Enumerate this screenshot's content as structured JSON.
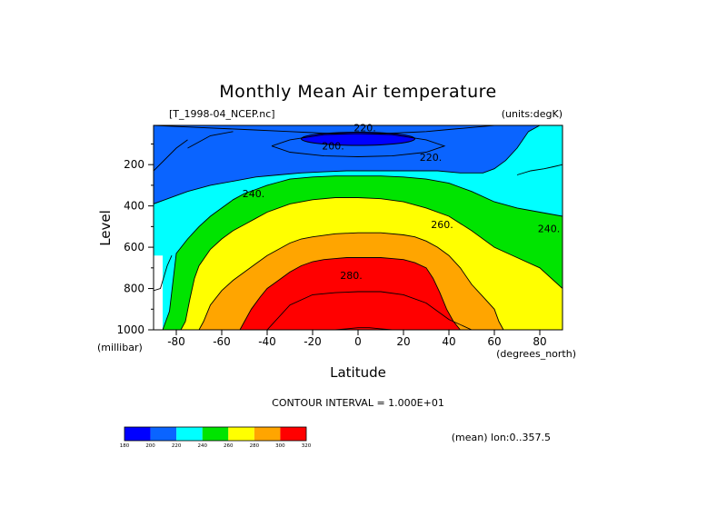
{
  "chart_data": {
    "type": "contour",
    "title": "Monthly Mean Air temperature",
    "file_label": "[T_1998-04_NCEP.nc]",
    "units_label": "(units:degK)",
    "xlabel": "Latitude",
    "ylabel": "Level",
    "y_units": "(millibar)",
    "x_units": "(degrees_north)",
    "xlim": [
      -90,
      90
    ],
    "ylim": [
      1000,
      10
    ],
    "x_ticks": [
      -80,
      -60,
      -40,
      -20,
      0,
      20,
      40,
      60,
      80
    ],
    "y_ticks": [
      200,
      400,
      600,
      800,
      1000
    ],
    "contour_interval_text": "CONTOUR INTERVAL = 1.000E+01",
    "contour_interval": 10,
    "footer_label": "(mean) lon:0..357.5",
    "levels": [
      180,
      200,
      220,
      240,
      260,
      280,
      300,
      320
    ],
    "band_colors": [
      "#0000ff",
      "#0a64ff",
      "#00ffff",
      "#00e400",
      "#ffff00",
      "#ffa500",
      "#ff0000"
    ],
    "contour_labels": [
      {
        "text": "200.",
        "lat": -11,
        "level": 110
      },
      {
        "text": "220.",
        "lat": 3,
        "level": 20
      },
      {
        "text": "220.",
        "lat": 32,
        "level": 165
      },
      {
        "text": "240.",
        "lat": -46,
        "level": 340
      },
      {
        "text": "260.",
        "lat": 37,
        "level": 490
      },
      {
        "text": "240.",
        "lat": 84,
        "level": 510
      },
      {
        "text": "280.",
        "lat": -3,
        "level": 735
      }
    ],
    "boundaries": {
      "200": {
        "lat": [
          -90,
          -70,
          -50,
          -30,
          -20,
          -10,
          0,
          10,
          20,
          30,
          40,
          50,
          60,
          70,
          90
        ],
        "level": [
          10,
          20,
          30,
          40,
          45,
          50,
          50,
          50,
          45,
          40,
          30,
          20,
          10,
          10,
          10
        ]
      },
      "220": {
        "lat": [
          -90,
          -85,
          -75,
          -65,
          -55,
          -45,
          -35,
          -25,
          -15,
          -5,
          5,
          15,
          25,
          35,
          45,
          55,
          60,
          65,
          70,
          75,
          80,
          85,
          90
        ],
        "level": [
          390,
          370,
          330,
          300,
          280,
          260,
          250,
          240,
          235,
          230,
          230,
          230,
          230,
          230,
          240,
          240,
          220,
          180,
          120,
          40,
          10,
          10,
          10
        ]
      },
      "240": {
        "lat": [
          -90,
          -86,
          -83,
          -80,
          -75,
          -70,
          -65,
          -60,
          -55,
          -50,
          -45,
          -40,
          -35,
          -30,
          -20,
          -10,
          0,
          10,
          20,
          30,
          40,
          50,
          60,
          70,
          80,
          90
        ],
        "level": [
          1000,
          1000,
          910,
          630,
          560,
          500,
          450,
          410,
          370,
          340,
          320,
          300,
          285,
          270,
          260,
          255,
          255,
          255,
          260,
          270,
          290,
          330,
          380,
          410,
          430,
          450
        ]
      },
      "260": {
        "lat": [
          -90,
          -78,
          -76,
          -74,
          -72,
          -70,
          -65,
          -60,
          -55,
          -50,
          -45,
          -40,
          -30,
          -20,
          -10,
          0,
          10,
          20,
          30,
          40,
          50,
          60,
          70,
          80,
          90
        ],
        "level": [
          1000,
          1000,
          960,
          850,
          750,
          690,
          610,
          560,
          520,
          490,
          460,
          430,
          390,
          370,
          360,
          360,
          365,
          380,
          410,
          450,
          520,
          600,
          650,
          700,
          800
        ]
      },
      "280": {
        "lat": [
          -90,
          -70,
          -68,
          -65,
          -60,
          -55,
          -50,
          -45,
          -40,
          -35,
          -30,
          -25,
          -20,
          -10,
          0,
          10,
          20,
          25,
          30,
          35,
          40,
          45,
          50,
          55,
          60,
          62,
          64,
          65,
          90
        ],
        "level": [
          1000,
          1000,
          960,
          880,
          810,
          760,
          720,
          680,
          640,
          610,
          580,
          560,
          550,
          535,
          530,
          530,
          540,
          550,
          570,
          600,
          640,
          700,
          780,
          840,
          900,
          960,
          1000,
          1000,
          1000
        ]
      },
      "300": {
        "lat": [
          -90,
          -52,
          -50,
          -47,
          -43,
          -40,
          -35,
          -30,
          -25,
          -20,
          -15,
          -10,
          -5,
          0,
          5,
          10,
          15,
          20,
          25,
          30,
          33,
          36,
          39,
          42,
          45,
          90
        ],
        "level": [
          1000,
          1000,
          960,
          900,
          840,
          800,
          760,
          720,
          690,
          670,
          660,
          655,
          650,
          650,
          650,
          650,
          655,
          660,
          675,
          700,
          750,
          820,
          900,
          960,
          1000,
          1000
        ]
      }
    },
    "extra_contours": [
      {
        "lat": [
          -90,
          -87,
          -84,
          -82
        ],
        "level": [
          810,
          800,
          690,
          640
        ]
      },
      {
        "lat": [
          -90,
          -80,
          -75
        ],
        "level": [
          230,
          120,
          80
        ]
      },
      {
        "lat": [
          -75,
          -65,
          -55
        ],
        "level": [
          120,
          60,
          40
        ]
      },
      {
        "lat": [
          70,
          76,
          82,
          86,
          90
        ],
        "level": [
          250,
          230,
          220,
          210,
          200
        ]
      },
      {
        "lat": [
          -40,
          -30,
          -20,
          -10,
          0,
          10,
          20,
          30,
          40,
          50
        ],
        "level": [
          1000,
          880,
          830,
          820,
          815,
          815,
          830,
          870,
          950,
          1000
        ]
      },
      {
        "lat": [
          -10,
          -5,
          0,
          5,
          10,
          15
        ],
        "level": [
          1000,
          995,
          990,
          990,
          995,
          1000
        ]
      },
      {
        "lat": [
          -38,
          -30,
          -15,
          0,
          15,
          30,
          38,
          30,
          15,
          0,
          -15,
          -30,
          -38
        ],
        "level": [
          110,
          80,
          55,
          50,
          55,
          80,
          110,
          140,
          158,
          162,
          158,
          140,
          110
        ]
      }
    ],
    "cold_core": {
      "lat_center": 0,
      "lat_halfwidth": 25,
      "level_center": 75,
      "level_halfwidth": 32
    },
    "unfilled_region": {
      "lat": [
        -90,
        -86,
        -86,
        -89,
        -90
      ],
      "level": [
        640,
        640,
        1000,
        1000,
        1000
      ]
    },
    "colorbar_ticks": [
      "180",
      "200",
      "220",
      "240",
      "260",
      "280",
      "300",
      "320"
    ]
  }
}
